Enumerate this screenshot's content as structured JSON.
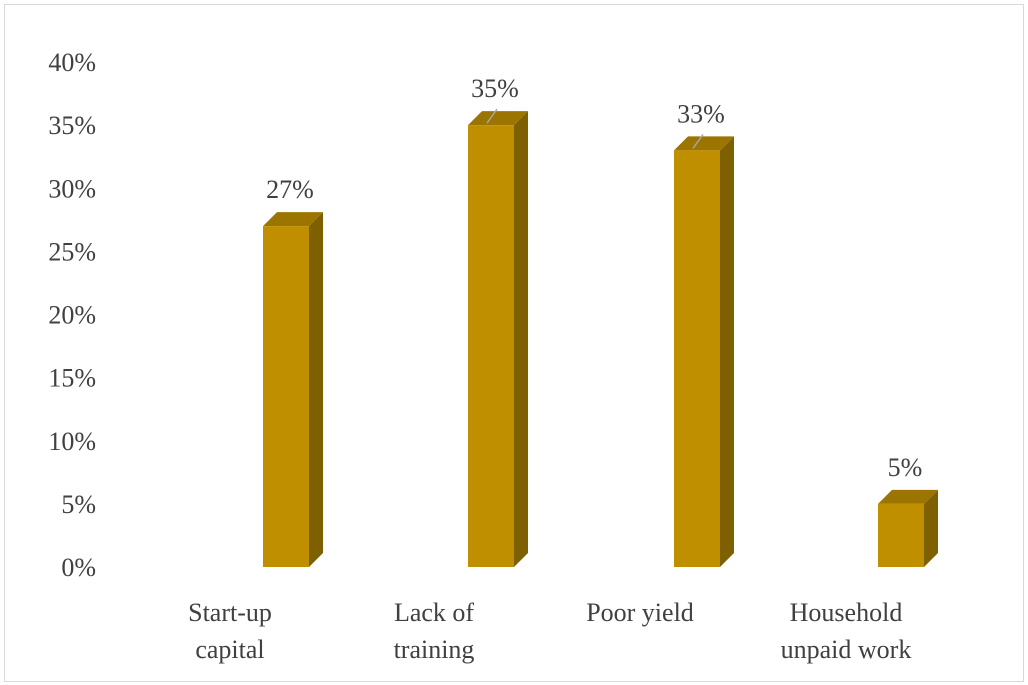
{
  "chart_data": {
    "type": "bar",
    "title": "",
    "xlabel": "",
    "ylabel": "",
    "categories": [
      [
        "Start-up",
        "capital"
      ],
      [
        "Lack of",
        "training"
      ],
      [
        "Poor yield"
      ],
      [
        "Household",
        "unpaid work"
      ]
    ],
    "values": [
      27,
      35,
      33,
      5
    ],
    "data_labels": [
      "27%",
      "35%",
      "33%",
      "5%"
    ],
    "ylim": [
      0,
      40
    ],
    "y_ticks": [
      0,
      5,
      10,
      15,
      20,
      25,
      30,
      35,
      40
    ],
    "y_tick_labels": [
      "0%",
      "5%",
      "10%",
      "15%",
      "20%",
      "25%",
      "30%",
      "35%",
      "40%"
    ],
    "grid": false,
    "legend": "none",
    "style": "3d-column"
  },
  "colors": {
    "bar_front": "#bf8f00",
    "bar_side": "#7f6000",
    "bar_top": "#9c7500",
    "text": "#404040",
    "leader_line": "#a6a6a6"
  }
}
